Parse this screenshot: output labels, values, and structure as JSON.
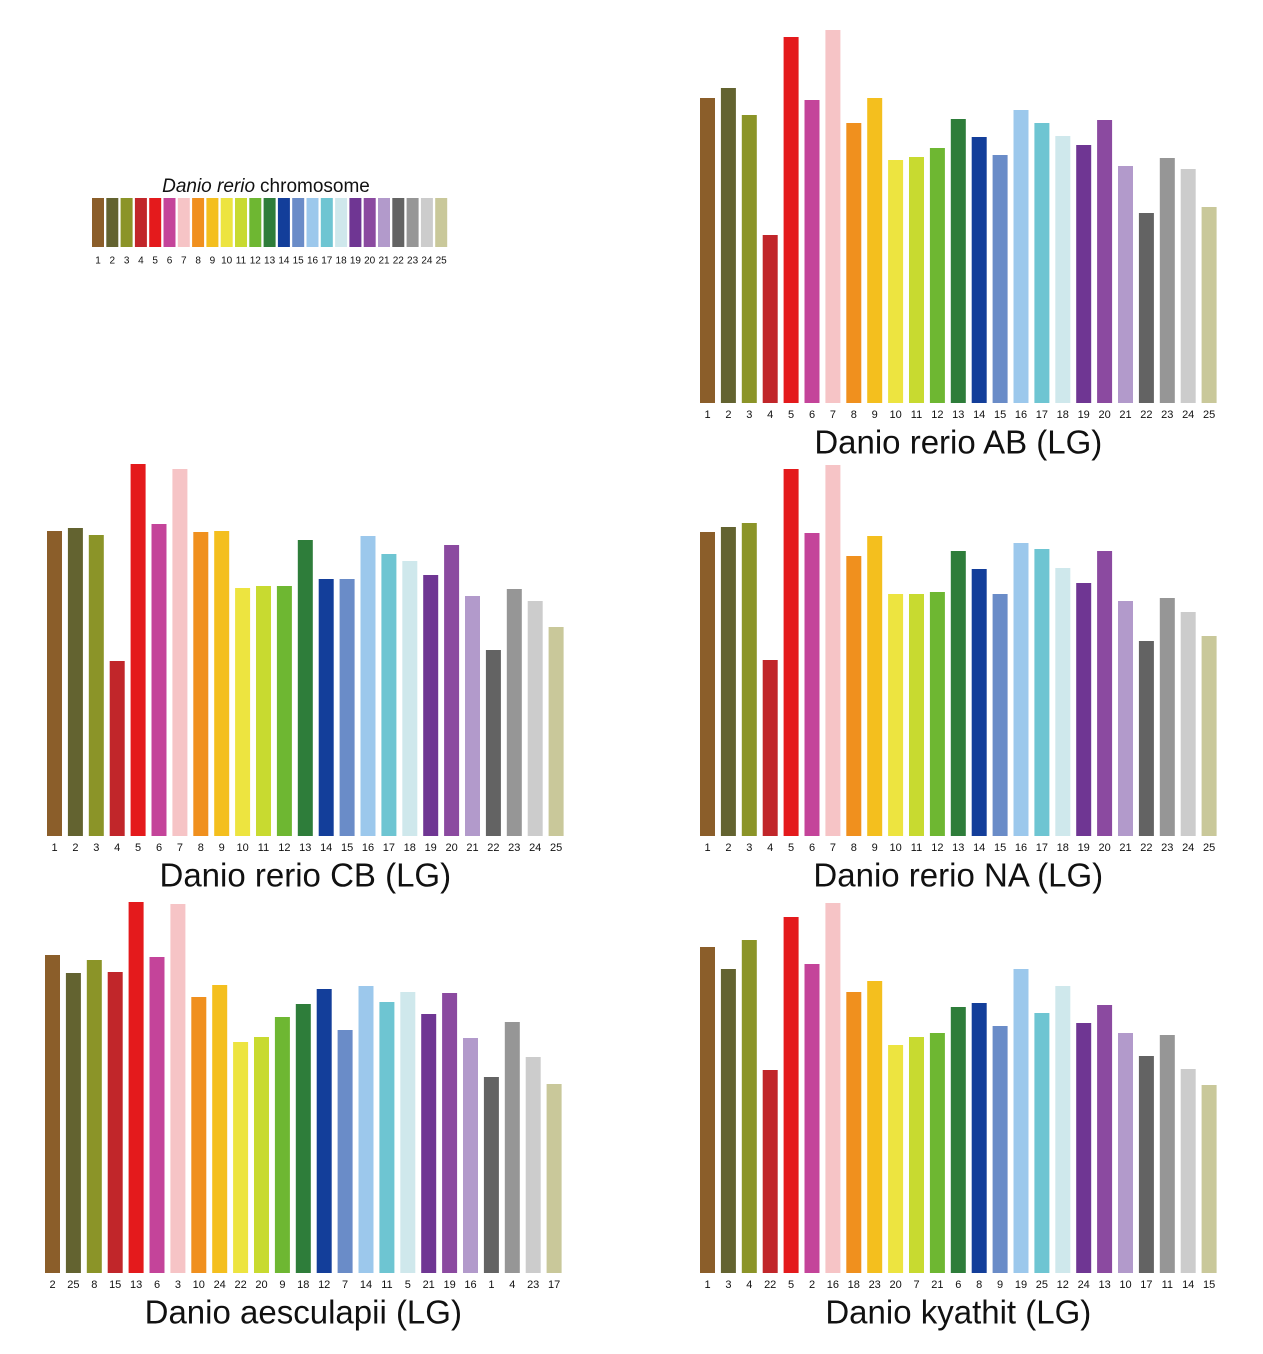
{
  "chart_data": [
    {
      "type": "legend",
      "title": [
        "Danio rerio",
        "chromosome"
      ],
      "categories": [
        "1",
        "2",
        "3",
        "4",
        "5",
        "6",
        "7",
        "8",
        "9",
        "10",
        "11",
        "12",
        "13",
        "14",
        "15",
        "16",
        "17",
        "18",
        "19",
        "20",
        "21",
        "22",
        "23",
        "24",
        "25"
      ],
      "colors": [
        "#8b5e2a",
        "#636330",
        "#8b9428",
        "#c1262a",
        "#e41a1c",
        "#c4449a",
        "#f6c4c6",
        "#f0901e",
        "#f4bf1e",
        "#ede440",
        "#c8da30",
        "#6eb732",
        "#2e7d3a",
        "#133e9a",
        "#6a8cc8",
        "#9cc8ec",
        "#6ec5d2",
        "#cfe8ec",
        "#6f3693",
        "#8b4aa0",
        "#b29acb",
        "#636363",
        "#969696",
        "#cccccc",
        "#c9c89a"
      ]
    },
    {
      "type": "bar",
      "title": "Danio rerio AB (LG)",
      "categories": [
        "1",
        "2",
        "3",
        "4",
        "5",
        "6",
        "7",
        "8",
        "9",
        "10",
        "11",
        "12",
        "13",
        "14",
        "15",
        "16",
        "17",
        "18",
        "19",
        "20",
        "21",
        "22",
        "23",
        "24",
        "25"
      ],
      "values": [
        305,
        315,
        288,
        168,
        366,
        303,
        373,
        280,
        305,
        243,
        246,
        255,
        284,
        266,
        248,
        293,
        280,
        267,
        258,
        283,
        237,
        190,
        245,
        234,
        196
      ],
      "colors": [
        "#8b5e2a",
        "#636330",
        "#8b9428",
        "#c1262a",
        "#e41a1c",
        "#c4449a",
        "#f6c4c6",
        "#f0901e",
        "#f4bf1e",
        "#ede440",
        "#c8da30",
        "#6eb732",
        "#2e7d3a",
        "#133e9a",
        "#6a8cc8",
        "#9cc8ec",
        "#6ec5d2",
        "#cfe8ec",
        "#6f3693",
        "#8b4aa0",
        "#b29acb",
        "#636363",
        "#969696",
        "#cccccc",
        "#c9c89a"
      ]
    },
    {
      "type": "bar",
      "title": "Danio rerio CB (LG)",
      "categories": [
        "1",
        "2",
        "3",
        "4",
        "5",
        "6",
        "7",
        "8",
        "9",
        "10",
        "11",
        "12",
        "13",
        "14",
        "15",
        "16",
        "17",
        "18",
        "19",
        "20",
        "21",
        "22",
        "23",
        "24",
        "25"
      ],
      "values": [
        305,
        308,
        301,
        175,
        372,
        312,
        367,
        304,
        305,
        248,
        250,
        250,
        296,
        257,
        257,
        300,
        282,
        275,
        261,
        291,
        240,
        186,
        247,
        235,
        209
      ],
      "colors": [
        "#8b5e2a",
        "#636330",
        "#8b9428",
        "#c1262a",
        "#e41a1c",
        "#c4449a",
        "#f6c4c6",
        "#f0901e",
        "#f4bf1e",
        "#ede440",
        "#c8da30",
        "#6eb732",
        "#2e7d3a",
        "#133e9a",
        "#6a8cc8",
        "#9cc8ec",
        "#6ec5d2",
        "#cfe8ec",
        "#6f3693",
        "#8b4aa0",
        "#b29acb",
        "#636363",
        "#969696",
        "#cccccc",
        "#c9c89a"
      ]
    },
    {
      "type": "bar",
      "title": "Danio rerio NA (LG)",
      "categories": [
        "1",
        "2",
        "3",
        "4",
        "5",
        "6",
        "7",
        "8",
        "9",
        "10",
        "11",
        "12",
        "13",
        "14",
        "15",
        "16",
        "17",
        "18",
        "19",
        "20",
        "21",
        "22",
        "23",
        "24",
        "25"
      ],
      "values": [
        304,
        309,
        313,
        176,
        367,
        303,
        371,
        280,
        300,
        242,
        242,
        244,
        285,
        267,
        242,
        293,
        287,
        268,
        253,
        285,
        235,
        195,
        238,
        224,
        200
      ],
      "colors": [
        "#8b5e2a",
        "#636330",
        "#8b9428",
        "#c1262a",
        "#e41a1c",
        "#c4449a",
        "#f6c4c6",
        "#f0901e",
        "#f4bf1e",
        "#ede440",
        "#c8da30",
        "#6eb732",
        "#2e7d3a",
        "#133e9a",
        "#6a8cc8",
        "#9cc8ec",
        "#6ec5d2",
        "#cfe8ec",
        "#6f3693",
        "#8b4aa0",
        "#b29acb",
        "#636363",
        "#969696",
        "#cccccc",
        "#c9c89a"
      ]
    },
    {
      "type": "bar",
      "title": "Danio aesculapii (LG)",
      "categories": [
        "2",
        "25",
        "8",
        "15",
        "13",
        "6",
        "3",
        "10",
        "24",
        "22",
        "20",
        "9",
        "18",
        "12",
        "7",
        "14",
        "11",
        "5",
        "21",
        "19",
        "16",
        "1",
        "4",
        "23",
        "17"
      ],
      "values": [
        318,
        300,
        313,
        301,
        371,
        316,
        369,
        276,
        288,
        231,
        236,
        256,
        269,
        284,
        243,
        287,
        271,
        281,
        259,
        280,
        235,
        196,
        251,
        216,
        189
      ],
      "colors": [
        "#8b5e2a",
        "#636330",
        "#8b9428",
        "#c1262a",
        "#e41a1c",
        "#c4449a",
        "#f6c4c6",
        "#f0901e",
        "#f4bf1e",
        "#ede440",
        "#c8da30",
        "#6eb732",
        "#2e7d3a",
        "#133e9a",
        "#6a8cc8",
        "#9cc8ec",
        "#6ec5d2",
        "#cfe8ec",
        "#6f3693",
        "#8b4aa0",
        "#b29acb",
        "#636363",
        "#969696",
        "#cccccc",
        "#c9c89a"
      ]
    },
    {
      "type": "bar",
      "title": "Danio kyathit (LG)",
      "categories": [
        "1",
        "3",
        "4",
        "22",
        "5",
        "2",
        "16",
        "18",
        "23",
        "20",
        "7",
        "21",
        "6",
        "8",
        "9",
        "19",
        "25",
        "12",
        "24",
        "13",
        "10",
        "17",
        "11",
        "14",
        "15"
      ],
      "values": [
        326,
        304,
        333,
        203,
        356,
        309,
        370,
        281,
        292,
        228,
        236,
        240,
        266,
        270,
        247,
        304,
        260,
        287,
        250,
        268,
        240,
        217,
        238,
        204,
        188
      ],
      "colors": [
        "#8b5e2a",
        "#636330",
        "#8b9428",
        "#c1262a",
        "#e41a1c",
        "#c4449a",
        "#f6c4c6",
        "#f0901e",
        "#f4bf1e",
        "#ede440",
        "#c8da30",
        "#6eb732",
        "#2e7d3a",
        "#133e9a",
        "#6a8cc8",
        "#9cc8ec",
        "#6ec5d2",
        "#cfe8ec",
        "#6f3693",
        "#8b4aa0",
        "#b29acb",
        "#636363",
        "#969696",
        "#cccccc",
        "#c9c89a"
      ]
    }
  ]
}
